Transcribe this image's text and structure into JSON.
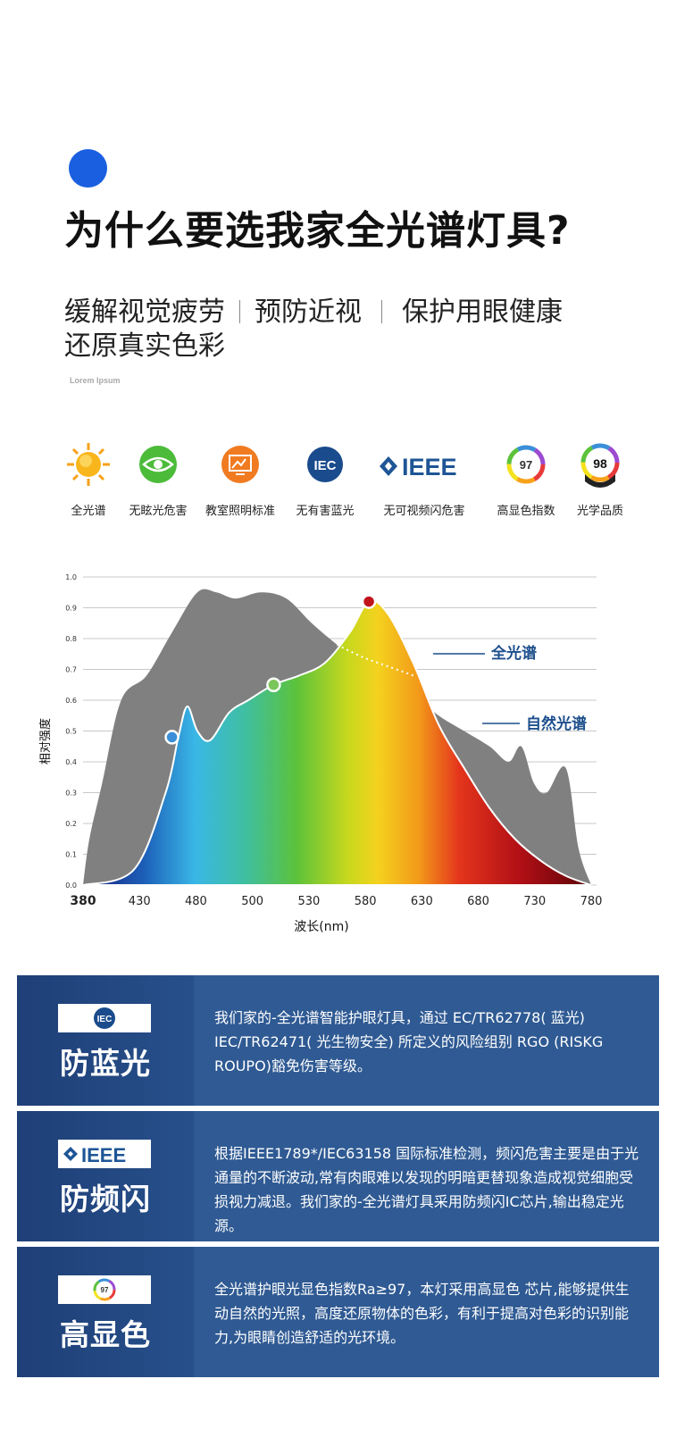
{
  "headline": "为什么要选我家全光谱灯具?",
  "subline_1": [
    "缓解视觉疲劳",
    "预防近视",
    "保护用眼健康"
  ],
  "subline_2": "还原真实色彩",
  "lorem": "Lorem Ipsum",
  "features": [
    {
      "label": "全光谱",
      "icon": "sun-icon"
    },
    {
      "label": "无眩光危害",
      "icon": "eye-icon"
    },
    {
      "label": "教室照明标准",
      "icon": "classroom-icon"
    },
    {
      "label": "无有害蓝光",
      "icon": "iec-icon"
    },
    {
      "label": "无可视频闪危害",
      "icon": "ieee-icon"
    },
    {
      "label": "高显色指数",
      "icon": "cri97-icon",
      "value": "97"
    },
    {
      "label": "光学品质",
      "icon": "quality98-icon",
      "value": "98"
    }
  ],
  "chart_data": {
    "type": "area",
    "xlabel": "波长(nm)",
    "ylabel": "相对强度",
    "xlim": [
      380,
      780
    ],
    "ylim": [
      0,
      1.0
    ],
    "x_ticks": [
      "380",
      "430",
      "480",
      "500",
      "530",
      "580",
      "630",
      "680",
      "730",
      "780"
    ],
    "y_ticks": [
      "0.0",
      "0.1",
      "0.2",
      "0.3",
      "0.4",
      "0.5",
      "0.6",
      "0.7",
      "0.8",
      "0.9",
      "1.0"
    ],
    "grid": true,
    "series": [
      {
        "name": "自然光谱",
        "color": "#808080",
        "x": [
          380,
          385,
          395,
          410,
          430,
          450,
          470,
          485,
          500,
          520,
          540,
          560,
          580,
          600,
          620,
          640,
          660,
          680,
          700,
          715,
          725,
          735,
          745,
          760,
          770,
          780
        ],
        "y": [
          0.0,
          0.15,
          0.33,
          0.6,
          0.68,
          0.82,
          0.95,
          0.95,
          0.93,
          0.95,
          0.93,
          0.85,
          0.78,
          0.72,
          0.68,
          0.62,
          0.55,
          0.5,
          0.45,
          0.4,
          0.45,
          0.33,
          0.3,
          0.38,
          0.12,
          0.0
        ]
      },
      {
        "name": "全光谱",
        "color": "#ffffff",
        "x": [
          380,
          420,
          445,
          455,
          462,
          470,
          480,
          495,
          510,
          530,
          550,
          570,
          590,
          605,
          620,
          640,
          660,
          680,
          700,
          720,
          740,
          760,
          780
        ],
        "y": [
          0.0,
          0.05,
          0.3,
          0.48,
          0.58,
          0.5,
          0.47,
          0.56,
          0.6,
          0.65,
          0.68,
          0.72,
          0.82,
          0.92,
          0.88,
          0.72,
          0.52,
          0.38,
          0.25,
          0.15,
          0.08,
          0.03,
          0.0
        ]
      }
    ],
    "markers": [
      {
        "x": 450,
        "y": 0.48,
        "color": "#3a8fd8"
      },
      {
        "x": 530,
        "y": 0.65,
        "color": "#7bc65a"
      },
      {
        "x": 605,
        "y": 0.92,
        "color": "#c0141c"
      }
    ]
  },
  "cards": [
    {
      "logo": "IEC",
      "title": "防蓝光",
      "text": "我们家的-全光谱智能护眼灯具，通过 EC/TR62778( 蓝光) IEC/TR62471( 光生物安全) 所定义的风险组别 RGO (RISKG ROUPO)豁免伤害等级。"
    },
    {
      "logo": "IEEE",
      "title": "防频闪",
      "text": "根据IEEE1789*/IEC63158 国际标准检测，频闪危害主要是由于光通量的不断波动,常有肉眼难以发现的明暗更替现象造成视觉细胞受损视力减退。我们家的-全光谱灯具采用防频闪IC芯片,输出稳定光源。"
    },
    {
      "logo": "97",
      "title": "高显色",
      "text": "全光谱护眼光显色指数Ra≥97，本灯采用高显色 芯片,能够提供生动自然的光照，高度还原物体的色彩，有利于提高对色彩的识别能力,为眼睛创造舒适的光环境。"
    }
  ]
}
